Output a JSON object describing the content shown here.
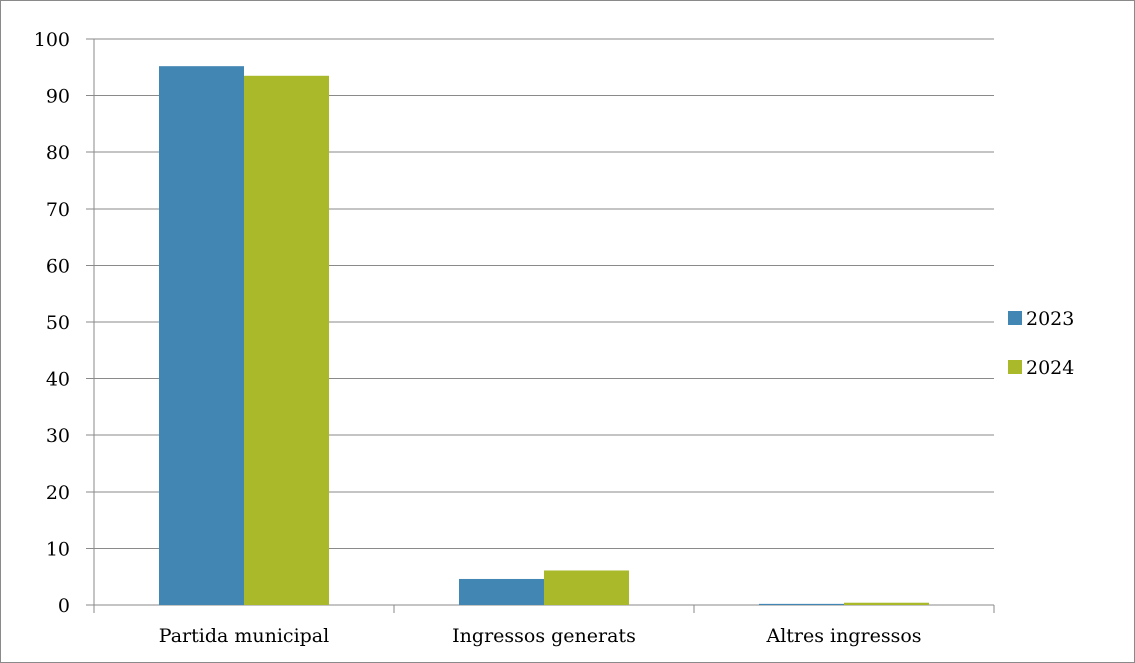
{
  "chart_data": {
    "type": "bar",
    "categories": [
      "Partida municipal",
      "Ingressos generats",
      "Altres ingressos"
    ],
    "series": [
      {
        "name": "2023",
        "color": "#4286B3",
        "values": [
          95.2,
          4.6,
          0.2
        ]
      },
      {
        "name": "2024",
        "color": "#A9B92A",
        "values": [
          93.5,
          6.1,
          0.4
        ]
      }
    ],
    "ylim": [
      0,
      100
    ],
    "yticks": [
      0,
      10,
      20,
      30,
      40,
      50,
      60,
      70,
      80,
      90,
      100
    ],
    "grid": true,
    "legend_position": "right",
    "title": "",
    "xlabel": "",
    "ylabel": ""
  }
}
